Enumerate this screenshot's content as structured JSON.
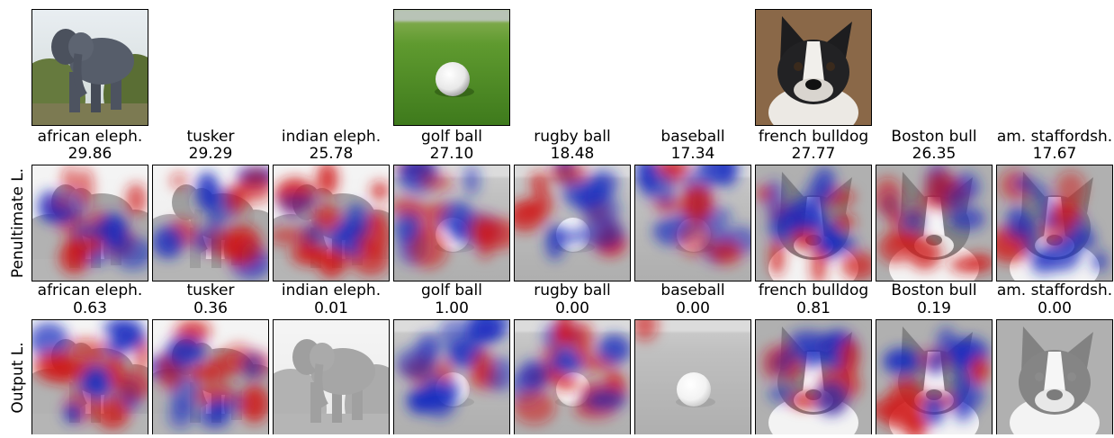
{
  "rows": [
    {
      "label": "Penultimate L.",
      "panels": [
        {
          "class": "african eleph.",
          "score": "29.86"
        },
        {
          "class": "tusker",
          "score": "29.29"
        },
        {
          "class": "indian eleph.",
          "score": "25.78"
        },
        {
          "class": "golf ball",
          "score": "27.10"
        },
        {
          "class": "rugby ball",
          "score": "18.48"
        },
        {
          "class": "baseball",
          "score": "17.34"
        },
        {
          "class": "french bulldog",
          "score": "27.77"
        },
        {
          "class": "Boston bull",
          "score": "26.35"
        },
        {
          "class": "am. staffordsh.",
          "score": "17.67"
        }
      ]
    },
    {
      "label": "Output L.",
      "panels": [
        {
          "class": "african eleph.",
          "score": "0.63"
        },
        {
          "class": "tusker",
          "score": "0.36"
        },
        {
          "class": "indian eleph.",
          "score": "0.01"
        },
        {
          "class": "golf ball",
          "score": "1.00"
        },
        {
          "class": "rugby ball",
          "score": "0.00"
        },
        {
          "class": "baseball",
          "score": "0.00"
        },
        {
          "class": "french bulldog",
          "score": "0.81"
        },
        {
          "class": "Boston bull",
          "score": "0.19"
        },
        {
          "class": "am. staffordsh.",
          "score": "0.00"
        }
      ]
    }
  ]
}
